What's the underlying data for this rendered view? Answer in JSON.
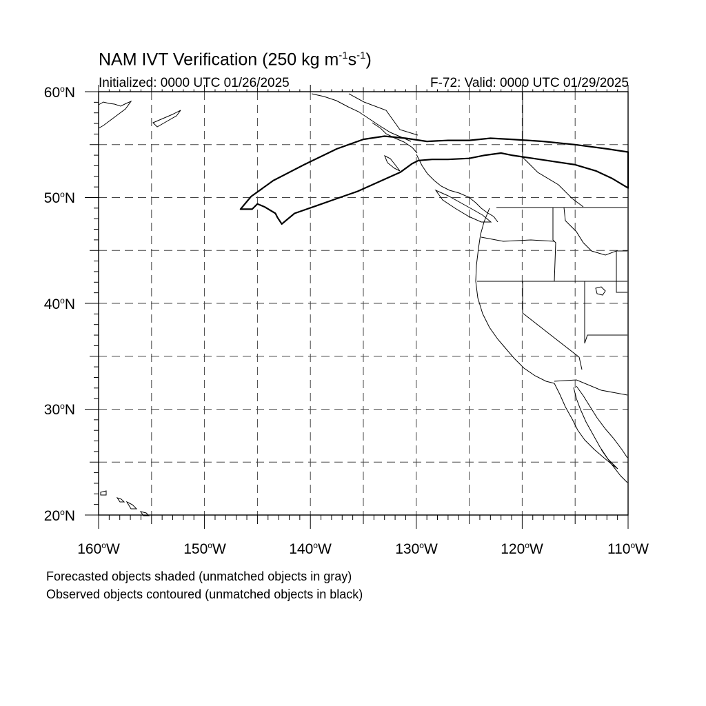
{
  "header": {
    "title_prefix": "NAM IVT Verification (250 kg m",
    "title_exp1": "-1",
    "title_mid": "s",
    "title_exp2": "-1",
    "title_suffix": ")",
    "initialized": "Initialized: 0000 UTC 01/26/2025",
    "valid": "F-72: Valid: 0000 UTC 01/29/2025"
  },
  "map": {
    "projection": "cylindrical equidistant",
    "lon_range": [
      -160,
      -110
    ],
    "lat_range": [
      20,
      60
    ],
    "grid": true,
    "grid_style": "dashed",
    "lat_labels": [
      {
        "num": "60",
        "deg": "o",
        "hemi": "N"
      },
      {
        "num": "50",
        "deg": "o",
        "hemi": "N"
      },
      {
        "num": "40",
        "deg": "o",
        "hemi": "N"
      },
      {
        "num": "30",
        "deg": "o",
        "hemi": "N"
      },
      {
        "num": "20",
        "deg": "o",
        "hemi": "N"
      }
    ],
    "lon_labels": [
      {
        "num": "160",
        "deg": "o",
        "hemi": "W"
      },
      {
        "num": "150",
        "deg": "o",
        "hemi": "W"
      },
      {
        "num": "140",
        "deg": "o",
        "hemi": "W"
      },
      {
        "num": "130",
        "deg": "o",
        "hemi": "W"
      },
      {
        "num": "120",
        "deg": "o",
        "hemi": "W"
      },
      {
        "num": "110",
        "deg": "o",
        "hemi": "W"
      }
    ],
    "observed_object": {
      "style": "contour",
      "color": "#000000",
      "outline_lonlat": [
        [
          -146.6,
          48.9
        ],
        [
          -145.6,
          50.1
        ],
        [
          -143.5,
          51.6
        ],
        [
          -140.6,
          53.1
        ],
        [
          -137.5,
          54.6
        ],
        [
          -135.0,
          55.5
        ],
        [
          -133.0,
          55.8
        ],
        [
          -131.0,
          55.6
        ],
        [
          -129.0,
          55.3
        ],
        [
          -127.0,
          55.4
        ],
        [
          -125.0,
          55.4
        ],
        [
          -123.0,
          55.6
        ],
        [
          -121.0,
          55.5
        ],
        [
          -118.0,
          55.3
        ],
        [
          -115.0,
          55.0
        ],
        [
          -112.0,
          54.6
        ],
        [
          -110.0,
          54.3
        ],
        [
          -110.0,
          50.9
        ],
        [
          -111.5,
          51.8
        ],
        [
          -113.0,
          52.5
        ],
        [
          -115.0,
          53.1
        ],
        [
          -117.0,
          53.4
        ],
        [
          -119.0,
          53.7
        ],
        [
          -121.0,
          54.0
        ],
        [
          -122.0,
          54.2
        ],
        [
          -123.5,
          54.0
        ],
        [
          -125.0,
          53.7
        ],
        [
          -127.0,
          53.6
        ],
        [
          -128.5,
          53.6
        ],
        [
          -129.8,
          53.5
        ],
        [
          -130.4,
          53.2
        ],
        [
          -131.5,
          52.4
        ],
        [
          -133.5,
          51.5
        ],
        [
          -135.5,
          50.6
        ],
        [
          -137.5,
          49.9
        ],
        [
          -139.5,
          49.2
        ],
        [
          -141.5,
          48.5
        ],
        [
          -142.7,
          47.5
        ],
        [
          -143.1,
          48.1
        ],
        [
          -143.3,
          48.5
        ],
        [
          -144.3,
          49.1
        ],
        [
          -145.0,
          49.4
        ],
        [
          -145.5,
          48.9
        ]
      ]
    }
  },
  "footer": {
    "line1": "Forecasted objects shaded (unmatched objects in gray)",
    "line2": "Observed objects contoured (unmatched objects in black)"
  }
}
